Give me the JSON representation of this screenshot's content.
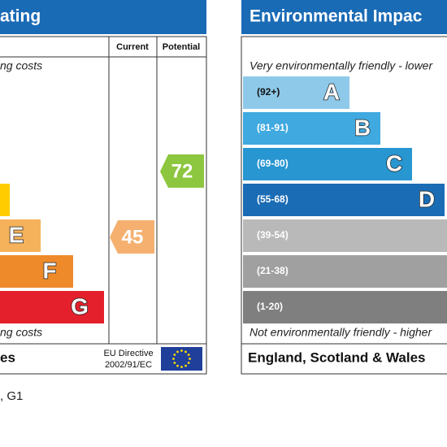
{
  "left_panel": {
    "header": "ating",
    "columns": [
      "Current",
      "Potential"
    ],
    "top_note": "ng costs",
    "bands": [
      {
        "letter": "E"
      },
      {
        "letter": "F"
      },
      {
        "letter": "G"
      }
    ],
    "current": 45,
    "potential": 72,
    "bottom_note": "ng costs",
    "footer": "es",
    "directive": [
      "EU Directive",
      "2002/91/EC"
    ]
  },
  "right_panel": {
    "header": "Environmental Impac",
    "top_note": "Very environmentally friendly - lower",
    "bands": [
      {
        "range": "(92+)",
        "letter": "A"
      },
      {
        "range": "(81-91)",
        "letter": "B"
      },
      {
        "range": "(69-80)",
        "letter": "C"
      },
      {
        "range": "(55-68)",
        "letter": "D"
      },
      {
        "range": "(39-54)"
      },
      {
        "range": "(21-38)"
      },
      {
        "range": "(1-20)"
      }
    ],
    "bottom_note": "Not environmentally friendly - higher",
    "footer": "England, Scotland & Wales"
  },
  "caption": ", G1"
}
